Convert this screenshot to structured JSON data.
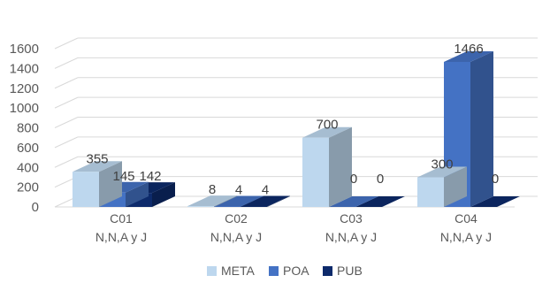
{
  "chart_data": {
    "type": "bar",
    "style": "3d-clustered-column",
    "categories": [
      [
        "C01",
        "N,N,A y J"
      ],
      [
        "C02",
        "N,N,A y J"
      ],
      [
        "C03",
        "N,N,A y J"
      ],
      [
        "C04",
        "N,N,A y J"
      ]
    ],
    "series": [
      {
        "name": "META",
        "color": "#bdd7ee",
        "values": [
          355,
          8,
          700,
          300
        ]
      },
      {
        "name": "POA",
        "color": "#4472c4",
        "values": [
          145,
          4,
          0,
          1466
        ]
      },
      {
        "name": "PUB",
        "color": "#0d2a6b",
        "values": [
          142,
          4,
          0,
          0
        ]
      }
    ],
    "ylim": [
      0,
      1600
    ],
    "yticks": [
      0,
      200,
      400,
      600,
      800,
      1000,
      1200,
      1400,
      1600
    ],
    "grid": true,
    "legend": "bottom"
  }
}
